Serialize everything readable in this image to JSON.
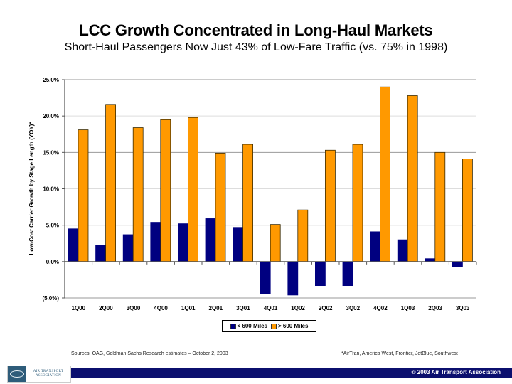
{
  "header": {
    "title": "LCC Growth Concentrated in Long-Haul Markets",
    "subtitle": "Short-Haul Passengers Now Just 43% of Low-Fare Traffic (vs. 75% in 1998)"
  },
  "chart_data": {
    "type": "bar",
    "title": "LCC Growth Concentrated in Long-Haul Markets",
    "subtitle": "Short-Haul Passengers Now Just 43% of Low-Fare Traffic (vs. 75% in 1998)",
    "xlabel": "",
    "ylabel": "Low-Cost Carrier Growth by Stage Length (YOY)*",
    "categories": [
      "1Q00",
      "2Q00",
      "3Q00",
      "4Q00",
      "1Q01",
      "2Q01",
      "3Q01",
      "4Q01",
      "1Q02",
      "2Q02",
      "3Q02",
      "4Q02",
      "1Q03",
      "2Q03",
      "3Q03"
    ],
    "series": [
      {
        "name": "< 600 Miles",
        "color": "#000080",
        "values": [
          4.5,
          2.2,
          3.7,
          5.4,
          5.2,
          5.9,
          4.7,
          -4.4,
          -4.6,
          -3.3,
          -3.3,
          4.1,
          3.0,
          0.4,
          -0.7
        ]
      },
      {
        "name": "> 600 Miles",
        "color": "#ff9900",
        "values": [
          18.1,
          21.6,
          18.4,
          19.5,
          19.8,
          14.9,
          16.1,
          5.1,
          7.1,
          15.3,
          16.1,
          24.0,
          22.8,
          15.0,
          14.1
        ]
      }
    ],
    "ylim": [
      -5,
      25
    ],
    "yticks": [
      25,
      20,
      15,
      10,
      5,
      0,
      -5
    ],
    "ytick_labels": [
      "25.0%",
      "20.0%",
      "15.0%",
      "10.0%",
      "5.0%",
      "0.0%",
      "(5.0%)"
    ],
    "grid": true,
    "legend_position": "bottom-center"
  },
  "legend": {
    "items": [
      {
        "label": "< 600 Miles",
        "color": "#000080"
      },
      {
        "label": "> 600 Miles",
        "color": "#ff9900"
      }
    ]
  },
  "footer": {
    "source": "Sources: OAG, Goldman Sachs Research estimates – October 2, 2003",
    "note": "*AirTran, America West, Frontier, JetBlue, Southwest",
    "copyright": "© 2003 Air Transport Association",
    "logo_line1": "AIR TRANSPORT",
    "logo_line2": "ASSOCIATION"
  }
}
